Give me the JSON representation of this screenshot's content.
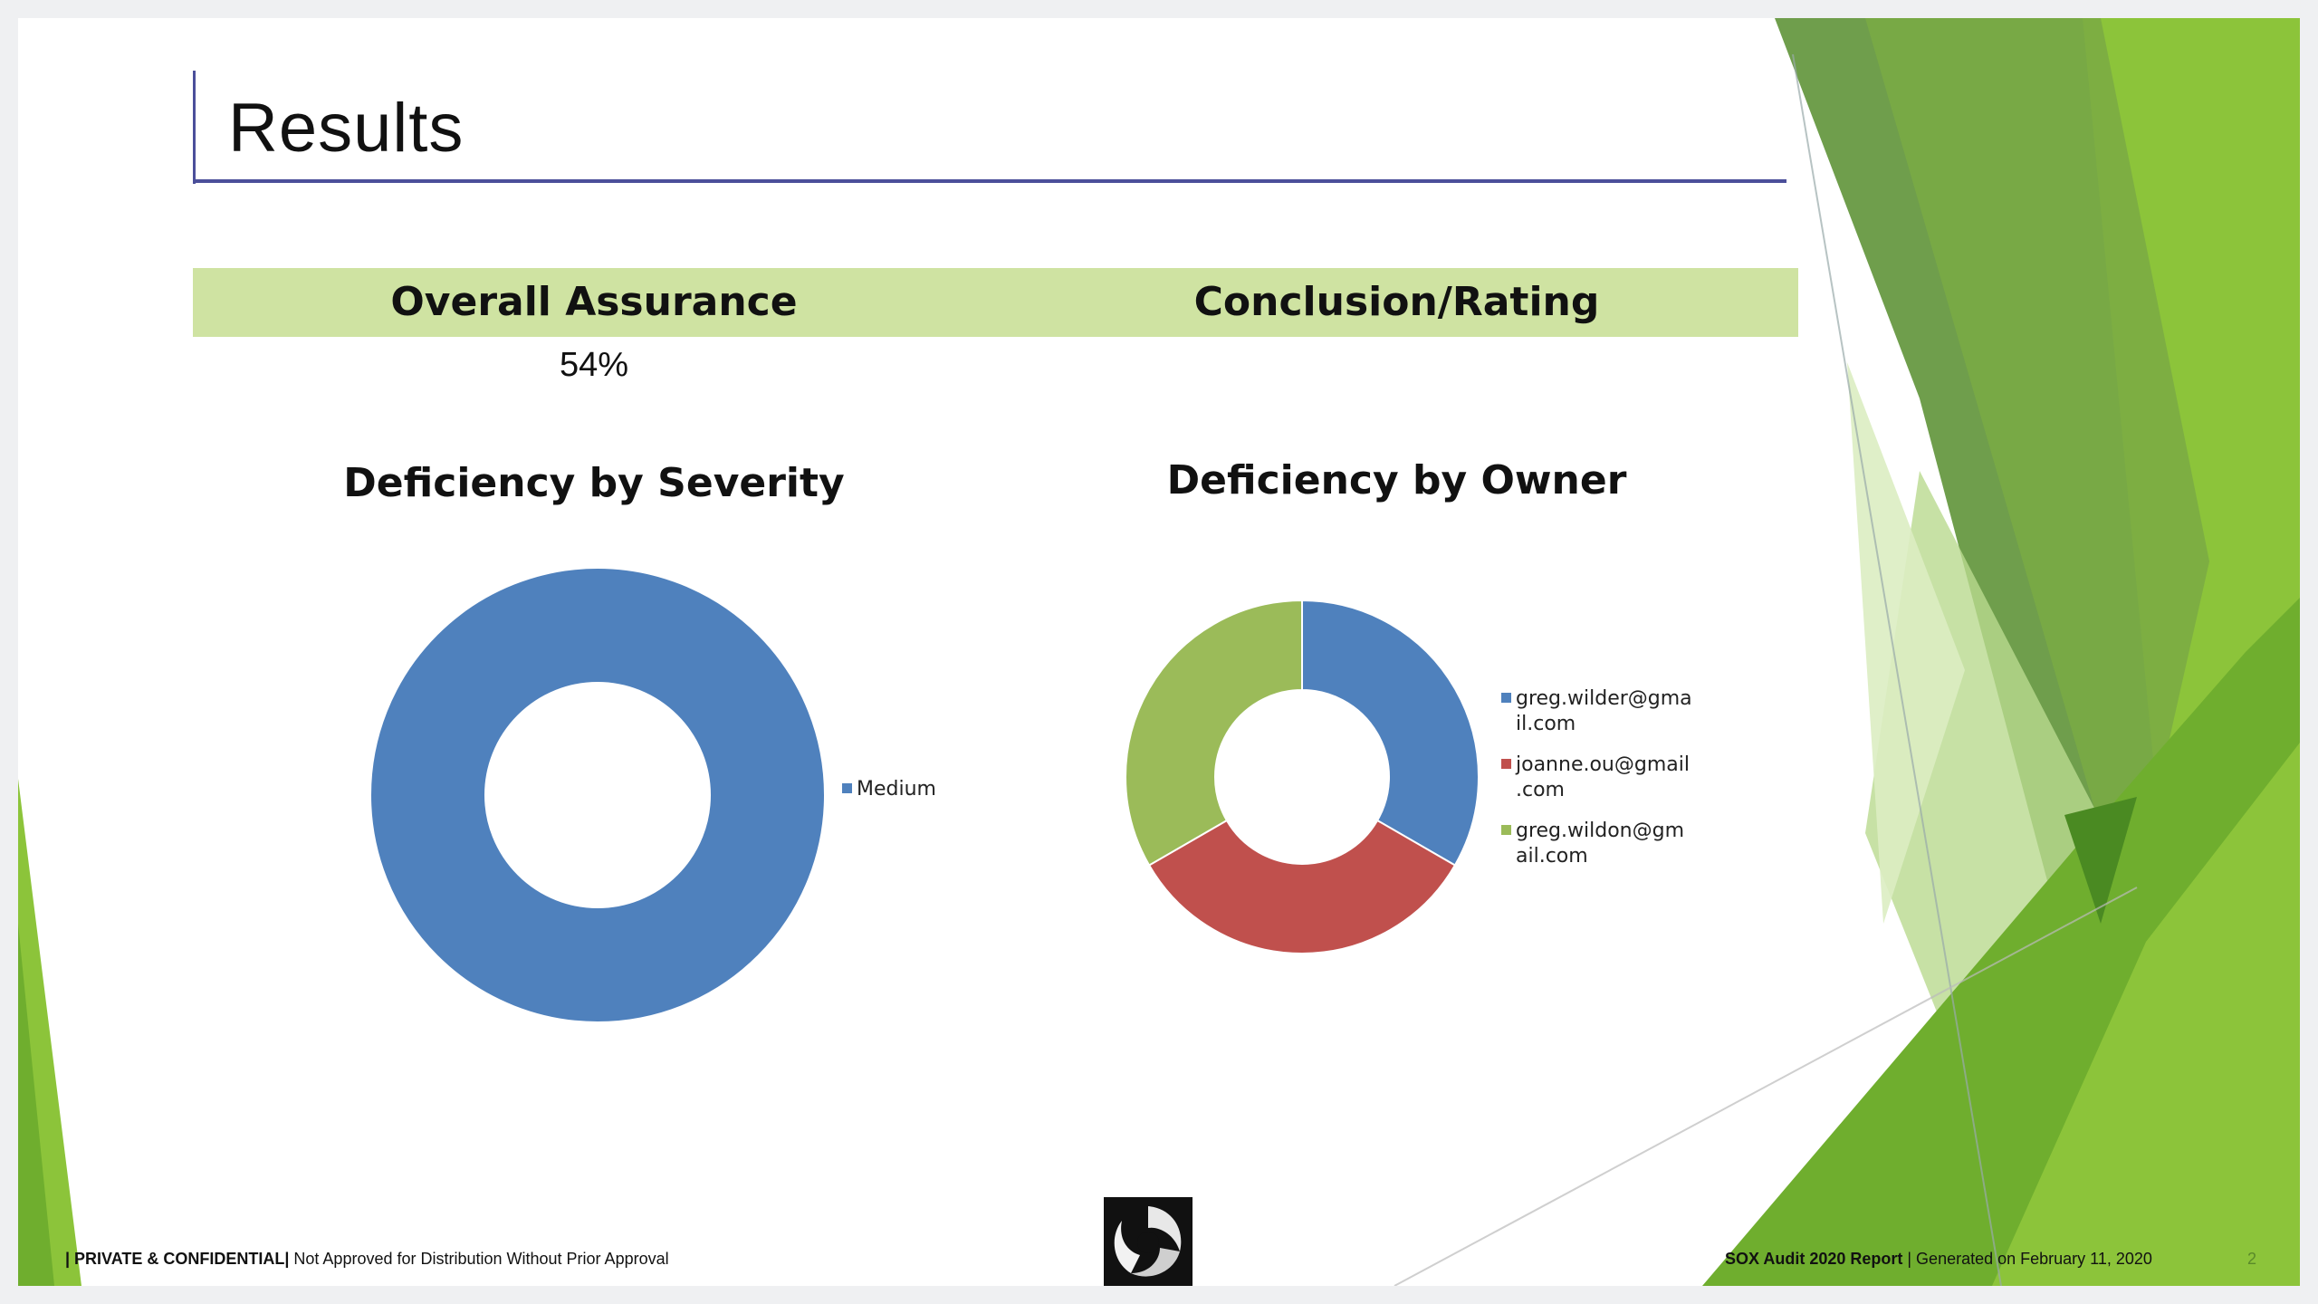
{
  "slide": {
    "title": "Results",
    "table": {
      "headers": [
        "Overall Assurance",
        "Conclusion/Rating"
      ],
      "values": [
        "54%",
        ""
      ]
    },
    "footer": {
      "left_bold": "| PRIVATE & CONFIDENTIAL|",
      "left_text": " Not Approved for Distribution Without Prior Approval",
      "right_bold": "SOX Audit 2020 Report",
      "right_text": " |  Generated on February 11, 2020",
      "page_number": "2"
    },
    "logo_icon": "camera-shutter-swirl-logo",
    "colors": {
      "title_rule": "#4b4f9a",
      "header_fill": "#cfe3a2",
      "accent_green": "#7ab32e"
    }
  },
  "chart_data": [
    {
      "type": "pie",
      "style": "donut",
      "title": "Deficiency by Severity",
      "legend_position": "right",
      "slices": [
        {
          "label": "Medium",
          "value": 1,
          "color": "#4f81bd"
        }
      ]
    },
    {
      "type": "pie",
      "style": "donut",
      "title": "Deficiency by Owner",
      "legend_position": "right",
      "slices": [
        {
          "label": "greg.wilder@gmail.com",
          "legend_lines": [
            "greg.wilder@gma",
            "il.com"
          ],
          "value": 1,
          "color": "#4f81bd"
        },
        {
          "label": "joanne.ou@gmail.com",
          "legend_lines": [
            "joanne.ou@gmail",
            ".com"
          ],
          "value": 1,
          "color": "#c0504d"
        },
        {
          "label": "greg.wildon@gmail.com",
          "legend_lines": [
            "greg.wildon@gm",
            "ail.com"
          ],
          "value": 1,
          "color": "#9bbb59"
        }
      ]
    }
  ]
}
